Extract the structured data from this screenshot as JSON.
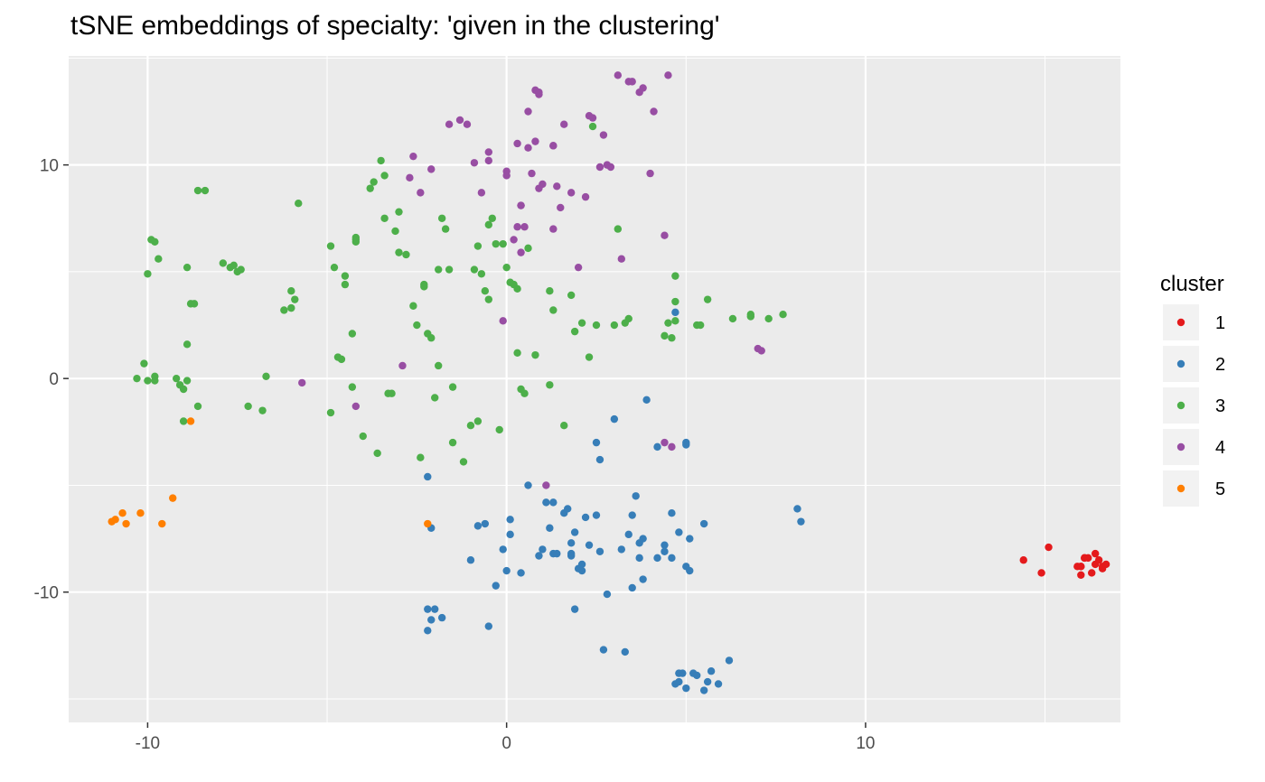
{
  "chart_data": {
    "type": "scatter",
    "title": "tSNE embeddings of specialty: 'given in the clustering'",
    "xlabel": "",
    "ylabel": "",
    "xlim": [
      -12.2,
      17.1
    ],
    "ylim": [
      -16.1,
      15.1
    ],
    "x_ticks": [
      -10,
      0,
      10
    ],
    "x_tick_labels": [
      "-10",
      "0",
      "10"
    ],
    "y_ticks": [
      -10,
      0,
      10
    ],
    "y_tick_labels": [
      "-10",
      "0",
      "10"
    ],
    "grid": true,
    "legend": {
      "title": "cluster",
      "placement": "right"
    },
    "series": [
      {
        "name": "1",
        "color": "#E41A1C",
        "points": [
          [
            14.4,
            -8.5
          ],
          [
            14.9,
            -9.1
          ],
          [
            15.1,
            -7.9
          ],
          [
            15.9,
            -8.8
          ],
          [
            16.0,
            -8.8
          ],
          [
            16.0,
            -8.8
          ],
          [
            16.1,
            -8.4
          ],
          [
            16.1,
            -8.4
          ],
          [
            16.2,
            -8.4
          ],
          [
            16.0,
            -9.2
          ],
          [
            16.3,
            -9.1
          ],
          [
            16.4,
            -8.2
          ],
          [
            16.4,
            -8.7
          ],
          [
            16.5,
            -8.5
          ],
          [
            16.6,
            -8.9
          ],
          [
            16.6,
            -8.8
          ],
          [
            16.7,
            -8.7
          ]
        ]
      },
      {
        "name": "2",
        "color": "#377EB8",
        "points": [
          [
            -2.2,
            -4.6
          ],
          [
            -2.1,
            -7.0
          ],
          [
            -2.2,
            -10.8
          ],
          [
            -2.0,
            -10.8
          ],
          [
            -2.1,
            -11.3
          ],
          [
            -2.2,
            -11.8
          ],
          [
            -1.8,
            -11.2
          ],
          [
            -1.0,
            -8.5
          ],
          [
            -0.8,
            -6.9
          ],
          [
            -0.6,
            -6.8
          ],
          [
            -0.5,
            -11.6
          ],
          [
            -0.3,
            -9.7
          ],
          [
            -0.1,
            -8.0
          ],
          [
            0.0,
            -9.0
          ],
          [
            0.1,
            -6.6
          ],
          [
            0.1,
            -7.3
          ],
          [
            0.4,
            -9.1
          ],
          [
            0.6,
            -5.0
          ],
          [
            0.9,
            -8.3
          ],
          [
            1.0,
            -8.0
          ],
          [
            1.1,
            -5.8
          ],
          [
            1.2,
            -7.0
          ],
          [
            1.3,
            -8.2
          ],
          [
            1.3,
            -5.8
          ],
          [
            1.4,
            -8.2
          ],
          [
            1.6,
            -6.3
          ],
          [
            1.7,
            -6.1
          ],
          [
            1.8,
            -7.7
          ],
          [
            1.8,
            -8.3
          ],
          [
            1.9,
            -10.8
          ],
          [
            1.8,
            -8.2
          ],
          [
            1.9,
            -7.2
          ],
          [
            2.0,
            -8.9
          ],
          [
            2.1,
            -9.0
          ],
          [
            2.1,
            -8.7
          ],
          [
            2.2,
            -6.5
          ],
          [
            2.3,
            -7.8
          ],
          [
            2.5,
            -6.4
          ],
          [
            2.6,
            -8.1
          ],
          [
            2.5,
            -3.0
          ],
          [
            2.6,
            -3.8
          ],
          [
            2.7,
            -12.7
          ],
          [
            2.8,
            -10.1
          ],
          [
            3.0,
            -1.9
          ],
          [
            3.2,
            -8.0
          ],
          [
            3.3,
            -12.8
          ],
          [
            3.4,
            -7.3
          ],
          [
            3.5,
            -6.4
          ],
          [
            3.5,
            -9.8
          ],
          [
            3.6,
            -5.5
          ],
          [
            3.7,
            -8.4
          ],
          [
            3.7,
            -7.7
          ],
          [
            3.8,
            -7.5
          ],
          [
            3.8,
            -9.4
          ],
          [
            4.2,
            -3.2
          ],
          [
            4.2,
            -8.4
          ],
          [
            4.4,
            -8.1
          ],
          [
            4.4,
            -7.8
          ],
          [
            4.6,
            -6.3
          ],
          [
            4.7,
            -14.3
          ],
          [
            4.8,
            -14.2
          ],
          [
            4.8,
            -13.8
          ],
          [
            4.9,
            -13.8
          ],
          [
            5.0,
            -14.5
          ],
          [
            4.6,
            -8.4
          ],
          [
            4.8,
            -7.2
          ],
          [
            5.0,
            -8.8
          ],
          [
            5.1,
            -9.0
          ],
          [
            5.1,
            -7.5
          ],
          [
            5.2,
            -13.8
          ],
          [
            5.3,
            -13.9
          ],
          [
            5.5,
            -14.6
          ],
          [
            5.5,
            -6.8
          ],
          [
            5.6,
            -14.2
          ],
          [
            5.7,
            -13.7
          ],
          [
            5.9,
            -14.3
          ],
          [
            6.2,
            -13.2
          ],
          [
            5.0,
            -3.0
          ],
          [
            5.0,
            -3.1
          ],
          [
            8.1,
            -6.1
          ],
          [
            8.2,
            -6.7
          ],
          [
            4.7,
            3.1
          ],
          [
            3.9,
            -1.0
          ]
        ]
      },
      {
        "name": "3",
        "color": "#4DAF4A",
        "points": [
          [
            -10.3,
            0.0
          ],
          [
            -10.0,
            -0.1
          ],
          [
            -10.1,
            0.7
          ],
          [
            -10.0,
            4.9
          ],
          [
            -9.9,
            6.5
          ],
          [
            -9.8,
            6.4
          ],
          [
            -9.7,
            5.6
          ],
          [
            -9.8,
            0.1
          ],
          [
            -9.8,
            -0.1
          ],
          [
            -9.2,
            0.0
          ],
          [
            -9.1,
            -0.3
          ],
          [
            -9.0,
            -0.5
          ],
          [
            -9.0,
            -2.0
          ],
          [
            -8.9,
            -0.1
          ],
          [
            -8.9,
            1.6
          ],
          [
            -8.9,
            5.2
          ],
          [
            -8.8,
            3.5
          ],
          [
            -8.7,
            3.5
          ],
          [
            -8.6,
            -1.3
          ],
          [
            -8.6,
            8.8
          ],
          [
            -8.4,
            8.8
          ],
          [
            -7.9,
            5.4
          ],
          [
            -7.7,
            5.2
          ],
          [
            -7.6,
            5.3
          ],
          [
            -7.5,
            5.0
          ],
          [
            -7.4,
            5.1
          ],
          [
            -7.2,
            -1.3
          ],
          [
            -6.8,
            -1.5
          ],
          [
            -6.7,
            0.1
          ],
          [
            -6.2,
            3.2
          ],
          [
            -6.0,
            3.3
          ],
          [
            -6.0,
            4.1
          ],
          [
            -5.9,
            3.7
          ],
          [
            -5.8,
            8.2
          ],
          [
            -4.9,
            6.2
          ],
          [
            -4.9,
            -1.6
          ],
          [
            -4.8,
            5.2
          ],
          [
            -4.7,
            1.0
          ],
          [
            -4.6,
            0.9
          ],
          [
            -4.5,
            4.8
          ],
          [
            -4.5,
            4.4
          ],
          [
            -4.3,
            2.1
          ],
          [
            -4.3,
            -0.4
          ],
          [
            -4.2,
            6.4
          ],
          [
            -4.2,
            6.5
          ],
          [
            -4.2,
            6.6
          ],
          [
            -4.0,
            -2.7
          ],
          [
            -3.8,
            8.9
          ],
          [
            -3.7,
            9.2
          ],
          [
            -3.6,
            -3.5
          ],
          [
            -3.5,
            10.2
          ],
          [
            -3.4,
            9.5
          ],
          [
            -3.4,
            7.5
          ],
          [
            -3.3,
            -0.7
          ],
          [
            -3.2,
            -0.7
          ],
          [
            -3.1,
            6.9
          ],
          [
            -3.0,
            7.8
          ],
          [
            -3.0,
            5.9
          ],
          [
            -2.8,
            5.8
          ],
          [
            -2.6,
            3.4
          ],
          [
            -2.5,
            2.5
          ],
          [
            -2.4,
            -3.7
          ],
          [
            -2.3,
            4.4
          ],
          [
            -2.3,
            4.3
          ],
          [
            -2.2,
            2.1
          ],
          [
            -2.1,
            1.9
          ],
          [
            -2.0,
            -0.9
          ],
          [
            -1.9,
            0.6
          ],
          [
            -1.9,
            5.1
          ],
          [
            -1.8,
            7.5
          ],
          [
            -1.7,
            7.0
          ],
          [
            -1.6,
            5.1
          ],
          [
            -1.5,
            -0.4
          ],
          [
            -1.5,
            -3.0
          ],
          [
            -1.2,
            -3.9
          ],
          [
            -1.0,
            -2.2
          ],
          [
            -0.9,
            5.1
          ],
          [
            -0.8,
            -2.0
          ],
          [
            -0.8,
            6.2
          ],
          [
            -0.7,
            4.9
          ],
          [
            -0.6,
            4.1
          ],
          [
            -0.5,
            3.7
          ],
          [
            -0.5,
            7.2
          ],
          [
            -0.4,
            7.5
          ],
          [
            -0.3,
            6.3
          ],
          [
            -0.2,
            -2.4
          ],
          [
            -0.1,
            6.3
          ],
          [
            0.0,
            5.2
          ],
          [
            0.1,
            4.5
          ],
          [
            0.2,
            4.4
          ],
          [
            0.3,
            4.2
          ],
          [
            0.3,
            1.2
          ],
          [
            0.4,
            -0.5
          ],
          [
            0.5,
            -0.7
          ],
          [
            0.6,
            6.1
          ],
          [
            0.8,
            1.1
          ],
          [
            1.2,
            -0.3
          ],
          [
            1.2,
            4.1
          ],
          [
            2.4,
            11.8
          ],
          [
            1.3,
            3.2
          ],
          [
            1.6,
            -2.2
          ],
          [
            1.8,
            3.9
          ],
          [
            1.9,
            2.2
          ],
          [
            2.1,
            2.6
          ],
          [
            2.3,
            1.0
          ],
          [
            2.5,
            2.5
          ],
          [
            3.0,
            2.5
          ],
          [
            3.1,
            7.0
          ],
          [
            3.4,
            2.8
          ],
          [
            3.3,
            2.6
          ],
          [
            4.4,
            2.0
          ],
          [
            4.5,
            2.6
          ],
          [
            4.6,
            1.9
          ],
          [
            4.7,
            2.7
          ],
          [
            4.7,
            4.8
          ],
          [
            4.7,
            3.6
          ],
          [
            5.3,
            2.5
          ],
          [
            5.4,
            2.5
          ],
          [
            5.6,
            3.7
          ],
          [
            6.3,
            2.8
          ],
          [
            6.8,
            3.0
          ],
          [
            6.8,
            2.9
          ],
          [
            7.3,
            2.8
          ],
          [
            7.7,
            3.0
          ]
        ]
      },
      {
        "name": "4",
        "color": "#984EA3",
        "points": [
          [
            -5.7,
            -0.2
          ],
          [
            -4.2,
            -1.3
          ],
          [
            -2.9,
            0.6
          ],
          [
            -2.7,
            9.4
          ],
          [
            -2.6,
            10.4
          ],
          [
            -2.4,
            8.7
          ],
          [
            -2.1,
            9.8
          ],
          [
            -1.6,
            11.9
          ],
          [
            -1.3,
            12.1
          ],
          [
            -1.1,
            11.9
          ],
          [
            -0.9,
            10.1
          ],
          [
            -0.7,
            8.7
          ],
          [
            -0.5,
            10.2
          ],
          [
            -0.5,
            10.6
          ],
          [
            -0.1,
            2.7
          ],
          [
            0.0,
            9.5
          ],
          [
            0.0,
            9.7
          ],
          [
            0.2,
            6.5
          ],
          [
            0.3,
            7.1
          ],
          [
            0.3,
            11.0
          ],
          [
            0.4,
            8.1
          ],
          [
            0.4,
            8.1
          ],
          [
            0.4,
            5.9
          ],
          [
            0.5,
            7.1
          ],
          [
            0.6,
            12.5
          ],
          [
            0.6,
            10.8
          ],
          [
            0.7,
            9.6
          ],
          [
            0.8,
            11.1
          ],
          [
            0.8,
            13.5
          ],
          [
            0.9,
            13.4
          ],
          [
            0.9,
            13.3
          ],
          [
            0.9,
            8.9
          ],
          [
            1.0,
            9.1
          ],
          [
            1.1,
            -5.0
          ],
          [
            1.3,
            7.0
          ],
          [
            1.3,
            10.9
          ],
          [
            1.3,
            10.9
          ],
          [
            1.4,
            9.0
          ],
          [
            1.5,
            8.0
          ],
          [
            1.6,
            11.9
          ],
          [
            1.8,
            8.7
          ],
          [
            2.0,
            5.2
          ],
          [
            2.2,
            8.5
          ],
          [
            2.3,
            12.3
          ],
          [
            2.4,
            12.2
          ],
          [
            2.6,
            9.9
          ],
          [
            2.7,
            11.4
          ],
          [
            2.8,
            10.0
          ],
          [
            2.9,
            9.9
          ],
          [
            3.1,
            14.2
          ],
          [
            3.2,
            5.6
          ],
          [
            3.4,
            13.9
          ],
          [
            3.5,
            13.9
          ],
          [
            3.7,
            13.4
          ],
          [
            3.8,
            13.6
          ],
          [
            4.0,
            9.6
          ],
          [
            4.1,
            12.5
          ],
          [
            4.4,
            6.7
          ],
          [
            4.5,
            14.2
          ],
          [
            7.0,
            1.4
          ],
          [
            7.1,
            1.3
          ],
          [
            4.4,
            -3.0
          ],
          [
            4.6,
            -3.2
          ]
        ]
      },
      {
        "name": "5",
        "color": "#FF7F00",
        "points": [
          [
            -11.0,
            -6.7
          ],
          [
            -10.9,
            -6.6
          ],
          [
            -10.7,
            -6.3
          ],
          [
            -10.6,
            -6.8
          ],
          [
            -10.2,
            -6.3
          ],
          [
            -9.6,
            -6.8
          ],
          [
            -9.3,
            -5.6
          ],
          [
            -8.8,
            -2.0
          ],
          [
            -2.2,
            -6.8
          ]
        ]
      }
    ]
  }
}
